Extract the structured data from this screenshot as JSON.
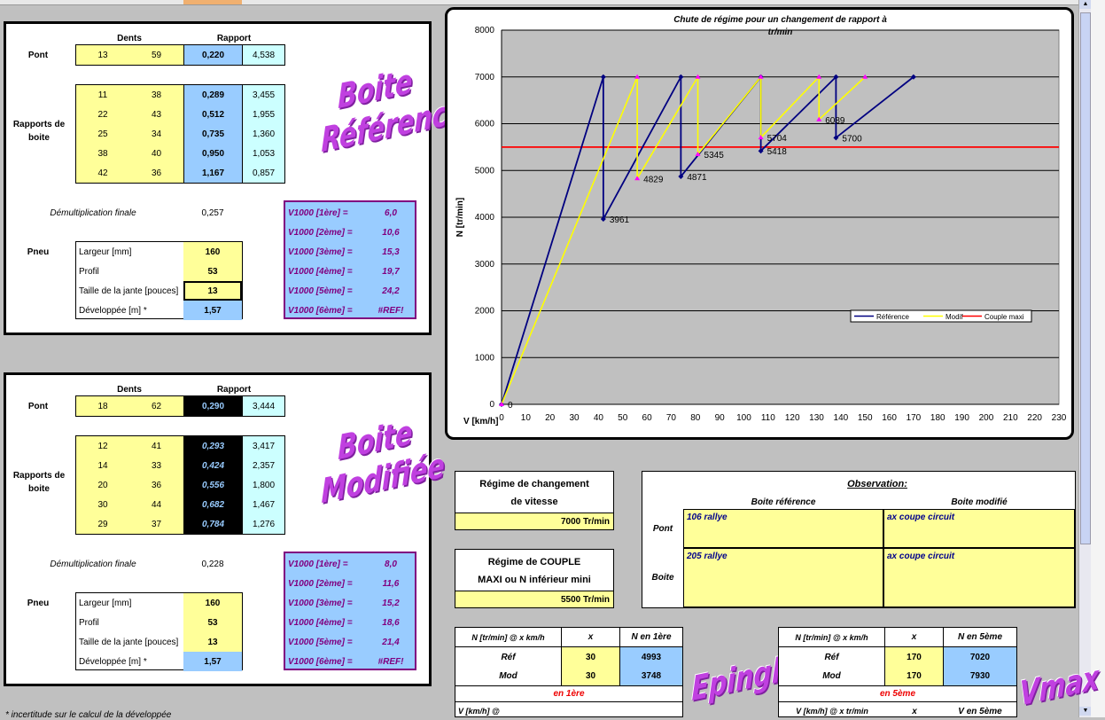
{
  "ref": {
    "dents_label": "Dents",
    "rapport_label": "Rapport",
    "pont_label": "Pont",
    "pont": [
      "13",
      "59",
      "0,220",
      "4,538"
    ],
    "rapports_label": "Rapports de boite",
    "gears": [
      [
        "11",
        "38",
        "0,289",
        "3,455"
      ],
      [
        "22",
        "43",
        "0,512",
        "1,955"
      ],
      [
        "25",
        "34",
        "0,735",
        "1,360"
      ],
      [
        "38",
        "40",
        "0,950",
        "1,053"
      ],
      [
        "42",
        "36",
        "1,167",
        "0,857"
      ]
    ],
    "demul_label": "Démultiplication finale",
    "demul_value": "0,257",
    "pneu_label": "Pneu",
    "pneu": [
      [
        "Largeur [mm]",
        "160"
      ],
      [
        "Profil",
        "53"
      ],
      [
        "Taille de la jante [pouces]",
        "13"
      ],
      [
        "Développée [m] *",
        "1,57"
      ]
    ],
    "v1000": [
      [
        "V1000 [1ère] =",
        "6,0"
      ],
      [
        "V1000 [2ème] =",
        "10,6"
      ],
      [
        "V1000 [3ème] =",
        "15,3"
      ],
      [
        "V1000 [4ème] =",
        "19,7"
      ],
      [
        "V1000 [5ème] =",
        "24,2"
      ],
      [
        "V1000 [6ème] =",
        "#REF!"
      ]
    ],
    "wordart": [
      "Boite",
      "Référence"
    ]
  },
  "mod": {
    "dents_label": "Dents",
    "rapport_label": "Rapport",
    "pont_label": "Pont",
    "pont": [
      "18",
      "62",
      "0,290",
      "3,444"
    ],
    "rapports_label": "Rapports de boite",
    "gears": [
      [
        "12",
        "41",
        "0,293",
        "3,417"
      ],
      [
        "14",
        "33",
        "0,424",
        "2,357"
      ],
      [
        "20",
        "36",
        "0,556",
        "1,800"
      ],
      [
        "30",
        "44",
        "0,682",
        "1,467"
      ],
      [
        "29",
        "37",
        "0,784",
        "1,276"
      ]
    ],
    "demul_label": "Démultiplication finale",
    "demul_value": "0,228",
    "pneu_label": "Pneu",
    "pneu": [
      [
        "Largeur [mm]",
        "160"
      ],
      [
        "Profil",
        "53"
      ],
      [
        "Taille de la jante [pouces]",
        "13"
      ],
      [
        "Développée [m] *",
        "1,57"
      ]
    ],
    "v1000": [
      [
        "V1000 [1ère] =",
        "8,0"
      ],
      [
        "V1000 [2ème] =",
        "11,6"
      ],
      [
        "V1000 [3ème] =",
        "15,2"
      ],
      [
        "V1000 [4ème] =",
        "18,6"
      ],
      [
        "V1000 [5ème] =",
        "21,4"
      ],
      [
        "V1000 [6ème] =",
        "#REF!"
      ]
    ],
    "wordart": [
      "Boite",
      "Modifiée"
    ]
  },
  "regime": {
    "change_label_1": "Régime de changement",
    "change_label_2": "de vitesse",
    "change_value": "7000  Tr/min",
    "couple_label_1": "Régime de COUPLE",
    "couple_label_2": "MAXI ou N inférieur mini",
    "couple_value": "5500  Tr/min"
  },
  "observation": {
    "title": "Observation:",
    "col_ref": "Boite référence",
    "col_mod": "Boite modifié",
    "rows": [
      {
        "label": "Pont",
        "ref": "106 rallye",
        "mod": "ax coupe circuit"
      },
      {
        "label": "Boite",
        "ref": "205 rallye",
        "mod": "ax coupe circuit"
      }
    ]
  },
  "epingles": {
    "h": [
      "N [tr/min] @ x km/h",
      "x",
      "N en 1ère"
    ],
    "rows": [
      [
        "Réf",
        "30",
        "4993"
      ],
      [
        "Mod",
        "30",
        "3748"
      ]
    ],
    "footer": "en 1ère",
    "bottom_h": [
      "V [km/h] @"
    ],
    "wordart": "Epingles"
  },
  "vmax": {
    "h": [
      "N [tr/min] @ x km/h",
      "x",
      "N en 5ème"
    ],
    "rows": [
      [
        "Réf",
        "170",
        "7020"
      ],
      [
        "Mod",
        "170",
        "7930"
      ]
    ],
    "footer": "en 5ème",
    "bottom_h": [
      "V [km/h] @ x tr/min",
      "x",
      "V en 5ème"
    ],
    "wordart": "Vmax"
  },
  "footnote": "* incertitude sur le calcul de la développée",
  "chart_data": {
    "type": "line",
    "title": "Chute de régime pour un changement de rapport à",
    "subtitle": "tr/min",
    "xlabel": "V [km/h]",
    "ylabel": "N [tr/min]",
    "xlim": [
      0,
      230
    ],
    "ylim": [
      0,
      8000
    ],
    "xticks": [
      0,
      10,
      20,
      30,
      40,
      50,
      60,
      70,
      80,
      90,
      100,
      110,
      120,
      130,
      140,
      150,
      160,
      170,
      180,
      190,
      200,
      210,
      220,
      230
    ],
    "yticks": [
      0,
      1000,
      2000,
      3000,
      4000,
      5000,
      6000,
      7000,
      8000
    ],
    "grid": true,
    "legend_position": "right",
    "colors": {
      "Référence": "#000080",
      "Modif": "#ffff00",
      "Couple maxi": "#ff0000",
      "marker_modif": "#ff00ff"
    },
    "series": [
      {
        "name": "Référence",
        "x": [
          0,
          42,
          42,
          74,
          74,
          107,
          107,
          138,
          138,
          170
        ],
        "y": [
          0,
          7000,
          3961,
          7000,
          4871,
          7000,
          5418,
          7000,
          5700,
          7000
        ]
      },
      {
        "name": "Modif",
        "x": [
          0,
          56,
          56,
          81,
          81,
          107,
          107,
          131,
          131,
          150
        ],
        "y": [
          0,
          7000,
          4829,
          7000,
          5345,
          7000,
          5704,
          7000,
          6089,
          7000
        ]
      },
      {
        "name": "Couple maxi",
        "x": [
          0,
          230
        ],
        "y": [
          5500,
          5500
        ]
      }
    ],
    "data_labels": [
      {
        "x": 0,
        "y": 0,
        "text": "0"
      },
      {
        "x": 42,
        "y": 3961,
        "text": "3961"
      },
      {
        "x": 56,
        "y": 4829,
        "text": "4829"
      },
      {
        "x": 74,
        "y": 4871,
        "text": "4871"
      },
      {
        "x": 81,
        "y": 5345,
        "text": "5345"
      },
      {
        "x": 107,
        "y": 5418,
        "text": "5418"
      },
      {
        "x": 107,
        "y": 5704,
        "text": "5704"
      },
      {
        "x": 131,
        "y": 6089,
        "text": "6089"
      },
      {
        "x": 138,
        "y": 5700,
        "text": "5700"
      }
    ]
  }
}
